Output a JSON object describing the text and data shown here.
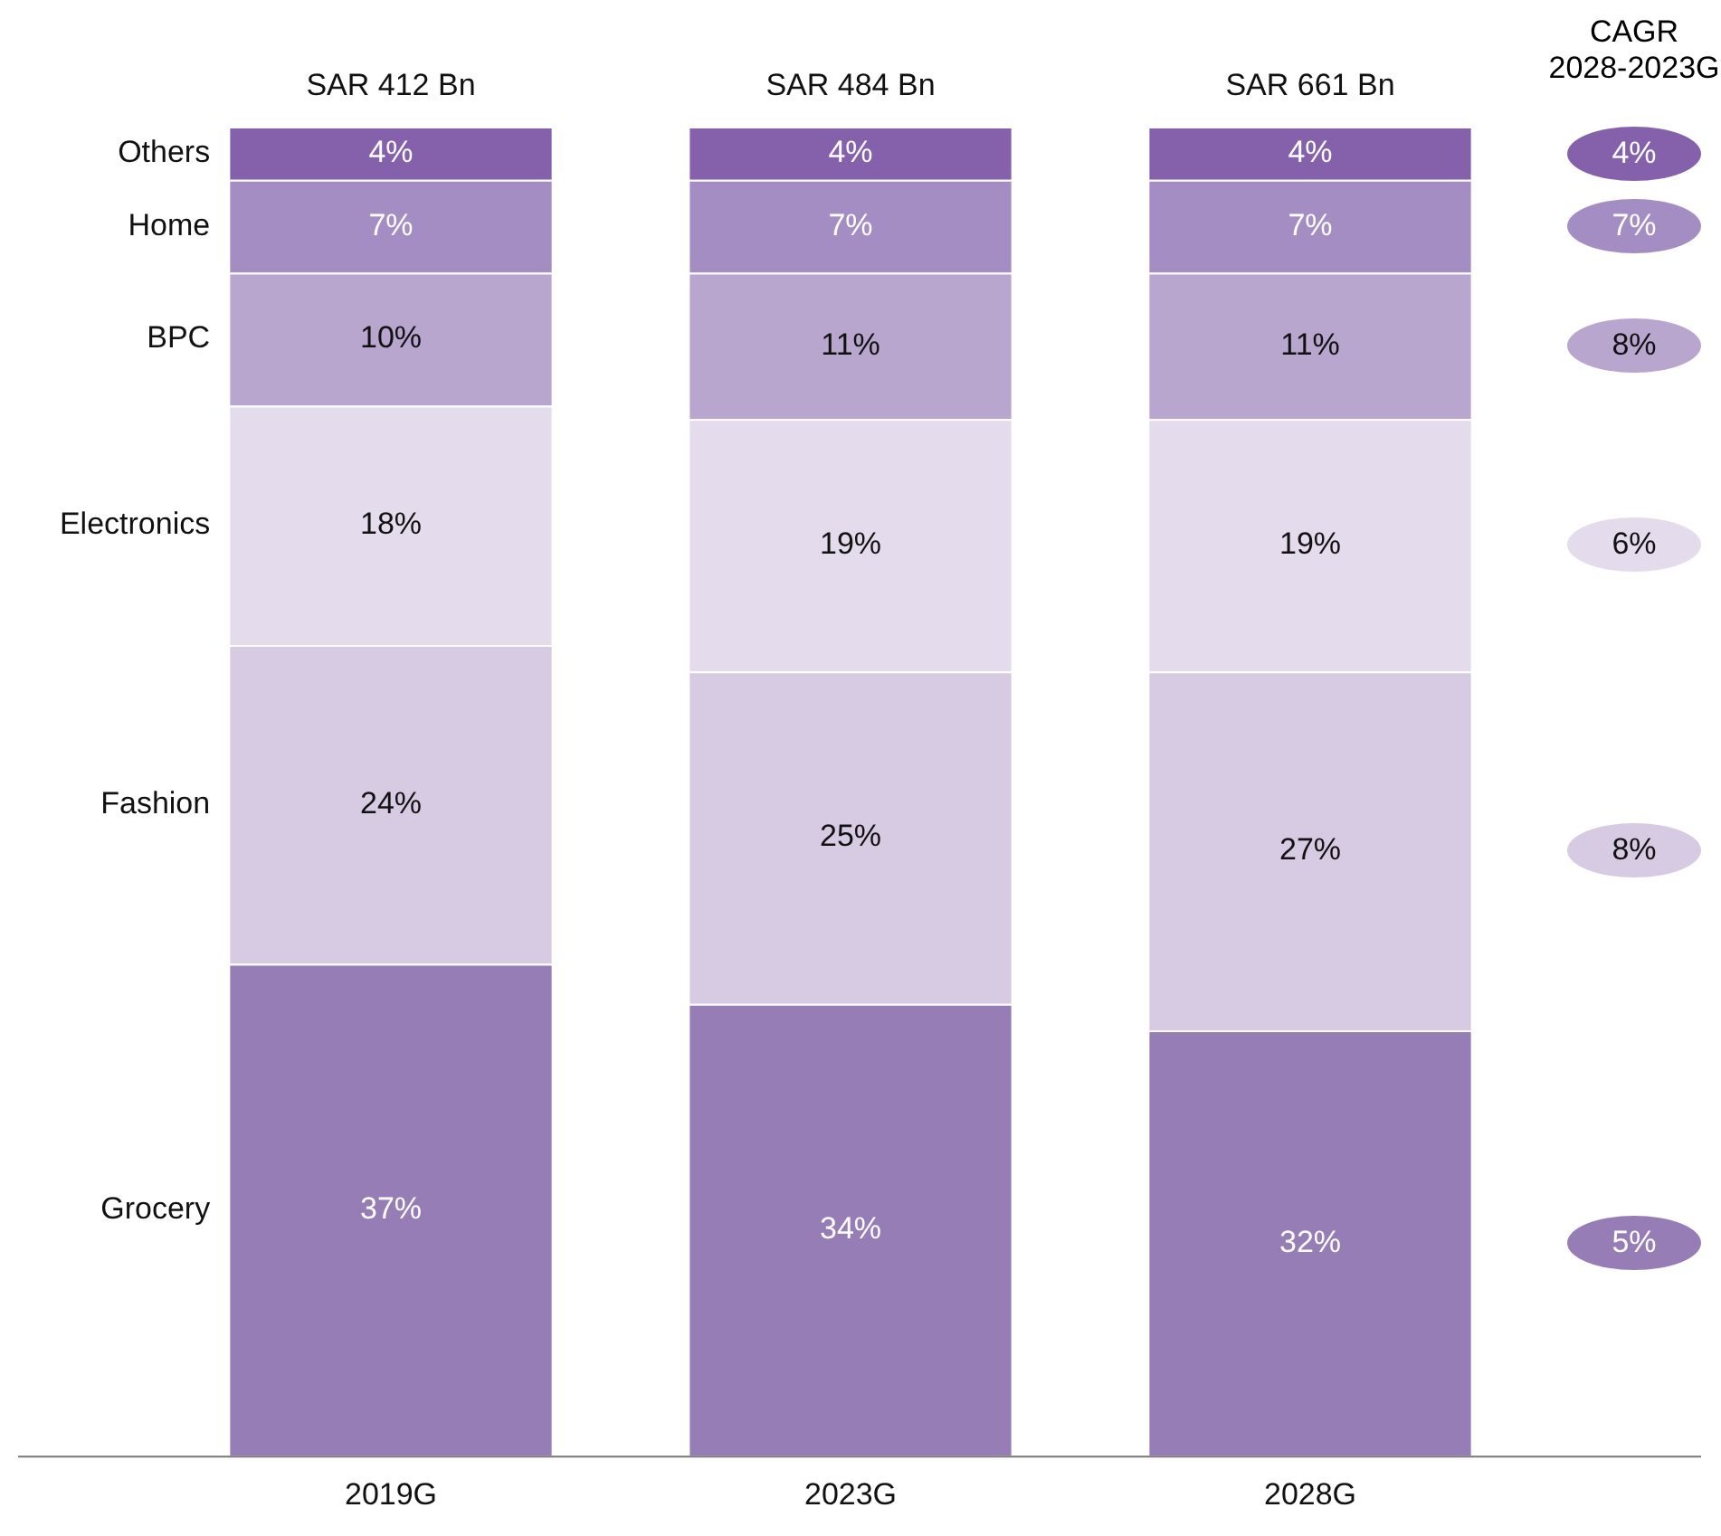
{
  "chart_data": {
    "type": "bar",
    "stacked": true,
    "legend": false,
    "grid": false,
    "categories": [
      "2019G",
      "2023G",
      "2028G"
    ],
    "totals": [
      "SAR 412 Bn",
      "SAR 484 Bn",
      "SAR 661 Bn"
    ],
    "series": [
      {
        "name": "Grocery",
        "color": "#967db5",
        "values": [
          37,
          34,
          32
        ],
        "value_labels": [
          "37%",
          "34%",
          "32%"
        ]
      },
      {
        "name": "Fashion",
        "color": "#d7cae3",
        "values": [
          24,
          25,
          27
        ],
        "value_labels": [
          "24%",
          "25%",
          "27%"
        ]
      },
      {
        "name": "Electronics",
        "color": "#e4dcec",
        "values": [
          18,
          19,
          19
        ],
        "value_labels": [
          "18%",
          "19%",
          "19%"
        ]
      },
      {
        "name": "BPC",
        "color": "#b8a6cf",
        "values": [
          10,
          11,
          11
        ],
        "value_labels": [
          "10%",
          "11%",
          "11%"
        ]
      },
      {
        "name": "Home",
        "color": "#a48dc2",
        "values": [
          7,
          7,
          7
        ],
        "value_labels": [
          "7%",
          "7%",
          "7%"
        ]
      },
      {
        "name": "Others",
        "color": "#8561ab",
        "values": [
          4,
          4,
          4
        ],
        "value_labels": [
          "4%",
          "4%",
          "4%"
        ]
      }
    ],
    "annotations": [
      "CAGR 2028-2023G",
      "5%",
      "8%",
      "6%",
      "8%",
      "7%",
      "4%"
    ]
  }
}
